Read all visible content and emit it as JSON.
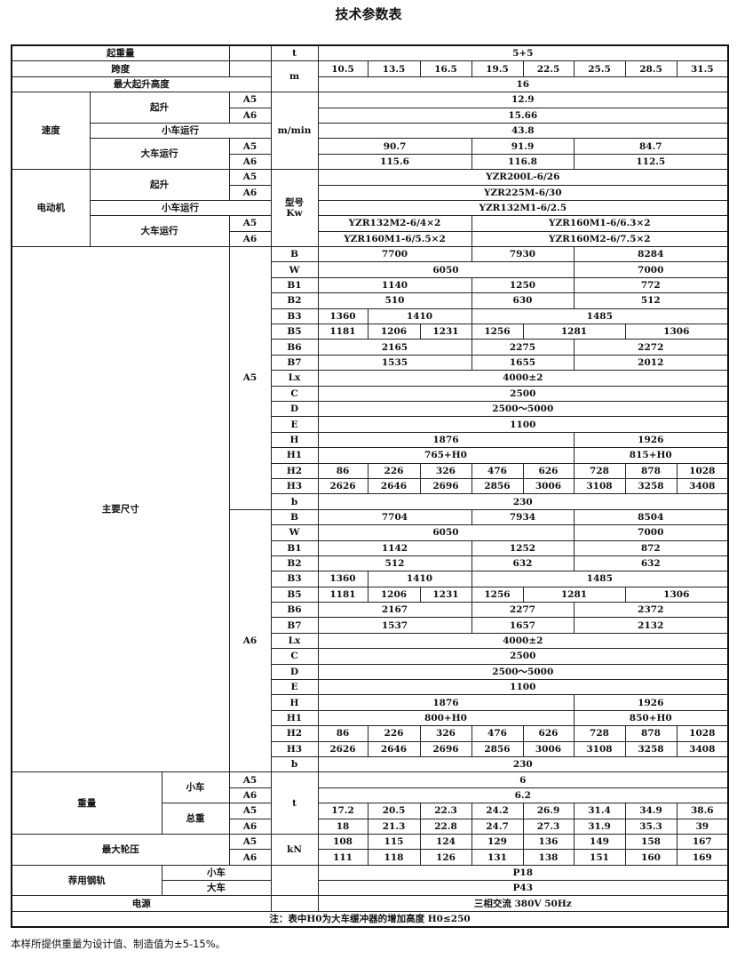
{
  "title": "技术参数表",
  "footnote": "本样所提供重量为设计值、制造值为±5-15%。",
  "table": {
    "rows": [
      [
        [
          "起重量",
          3
        ],
        "",
        [
          "t"
        ],
        [
          "5+5",
          8
        ]
      ],
      [
        [
          "跨度",
          3
        ],
        "",
        [
          "m",
          1,
          2
        ],
        "10.5",
        "13.5",
        "16.5",
        "19.5",
        "22.5",
        "25.5",
        "28.5",
        "31.5"
      ],
      [
        [
          "最大起升高度",
          4
        ],
        [
          "16",
          8
        ]
      ],
      [
        [
          "速度",
          1,
          5
        ],
        [
          "起升",
          2,
          2
        ],
        "A5",
        [
          "m/min",
          1,
          5
        ],
        [
          "12.9",
          8
        ]
      ],
      [
        "A6",
        [
          "15.66",
          8
        ]
      ],
      [
        [
          "小车运行",
          3
        ],
        [
          "43.8",
          8
        ]
      ],
      [
        [
          "大车运行",
          2,
          2
        ],
        "A5",
        [
          "90.7",
          3
        ],
        [
          "91.9",
          2
        ],
        [
          "84.7",
          3
        ]
      ],
      [
        "A6",
        [
          "115.6",
          3
        ],
        [
          "116.8",
          2
        ],
        [
          "112.5",
          3
        ]
      ],
      [
        [
          "电动机",
          1,
          5
        ],
        [
          "起升",
          2,
          2
        ],
        "A5",
        [
          "型号\nKw",
          1,
          5
        ],
        [
          "YZR200L-6/26",
          8
        ]
      ],
      [
        "A6",
        [
          "YZR225M-6/30",
          8
        ]
      ],
      [
        [
          "小车运行",
          3
        ],
        [
          "YZR132M1-6/2.5",
          8
        ]
      ],
      [
        [
          "大车运行",
          2,
          2
        ],
        "A5",
        [
          "YZR132M2-6/4×2",
          3
        ],
        [
          "YZR160M1-6/6.3×2",
          5
        ]
      ],
      [
        "A6",
        [
          "YZR160M1-6/5.5×2",
          3
        ],
        [
          "YZR160M2-6/7.5×2",
          5
        ]
      ],
      [
        [
          "主要尺寸",
          3,
          34
        ],
        [
          "A5",
          1,
          17
        ],
        "B",
        [
          "7700",
          3
        ],
        [
          "7930",
          2
        ],
        [
          "8284",
          3
        ]
      ],
      [
        "W",
        [
          "6050",
          5
        ],
        [
          "7000",
          3
        ]
      ],
      [
        "B1",
        [
          "1140",
          3
        ],
        [
          "1250",
          2
        ],
        [
          "772",
          3
        ]
      ],
      [
        "B2",
        [
          "510",
          3
        ],
        [
          "630",
          2
        ],
        [
          "512",
          3
        ]
      ],
      [
        "B3",
        "1360",
        [
          "1410",
          2
        ],
        [
          "1485",
          5
        ]
      ],
      [
        "B5",
        "1181",
        "1206",
        "1231",
        "1256",
        [
          "1281",
          2
        ],
        [
          "1306",
          2
        ]
      ],
      [
        "B6",
        [
          "2165",
          3
        ],
        [
          "2275",
          2
        ],
        [
          "2272",
          3
        ]
      ],
      [
        "B7",
        [
          "1535",
          3
        ],
        [
          "1655",
          2
        ],
        [
          "2012",
          3
        ]
      ],
      [
        "Lx",
        [
          "4000±2",
          8
        ]
      ],
      [
        "C",
        [
          "2500",
          8
        ]
      ],
      [
        "D",
        [
          "2500～5000",
          8
        ]
      ],
      [
        "E",
        [
          "1100",
          8
        ]
      ],
      [
        "H",
        [
          "1876",
          5
        ],
        [
          "1926",
          3
        ]
      ],
      [
        "H1",
        [
          "765+H0",
          5
        ],
        [
          "815+H0",
          3
        ]
      ],
      [
        "H2",
        "86",
        "226",
        "326",
        "476",
        "626",
        "728",
        "878",
        "1028"
      ],
      [
        "H3",
        "2626",
        "2646",
        "2696",
        "2856",
        "3006",
        "3108",
        "3258",
        "3408"
      ],
      [
        "b",
        [
          "230",
          8
        ]
      ],
      [
        [
          "A6",
          1,
          17
        ],
        "B",
        [
          "7704",
          3
        ],
        [
          "7934",
          2
        ],
        [
          "8504",
          3
        ]
      ],
      [
        "W",
        [
          "6050",
          5
        ],
        [
          "7000",
          3
        ]
      ],
      [
        "B1",
        [
          "1142",
          3
        ],
        [
          "1252",
          2
        ],
        [
          "872",
          3
        ]
      ],
      [
        "B2",
        [
          "512",
          3
        ],
        [
          "632",
          2
        ],
        [
          "632",
          3
        ]
      ],
      [
        "B3",
        "1360",
        [
          "1410",
          2
        ],
        [
          "1485",
          5
        ]
      ],
      [
        "B5",
        "1181",
        "1206",
        "1231",
        "1256",
        [
          "1281",
          2
        ],
        [
          "1306",
          2
        ]
      ],
      [
        "B6",
        [
          "2167",
          3
        ],
        [
          "2277",
          2
        ],
        [
          "2372",
          3
        ]
      ],
      [
        "B7",
        [
          "1537",
          3
        ],
        [
          "1657",
          2
        ],
        [
          "2132",
          3
        ]
      ],
      [
        "Lx",
        [
          "4000±2",
          8
        ]
      ],
      [
        "C",
        [
          "2500",
          8
        ]
      ],
      [
        "D",
        [
          "2500～5000",
          8
        ]
      ],
      [
        "E",
        [
          "1100",
          8
        ]
      ],
      [
        "H",
        [
          "1876",
          5
        ],
        [
          "1926",
          3
        ]
      ],
      [
        "H1",
        [
          "800+H0",
          5
        ],
        [
          "850+H0",
          3
        ]
      ],
      [
        "H2",
        "86",
        "226",
        "326",
        "476",
        "626",
        "728",
        "878",
        "1028"
      ],
      [
        "H3",
        "2626",
        "2646",
        "2696",
        "2856",
        "3006",
        "3108",
        "3258",
        "3408"
      ],
      [
        "b",
        [
          "230",
          8
        ]
      ],
      [
        [
          "重量",
          2,
          4
        ],
        [
          "小车",
          1,
          2
        ],
        "A5",
        [
          "t",
          1,
          4
        ],
        [
          "6",
          8
        ]
      ],
      [
        "A6",
        [
          "6.2",
          8
        ]
      ],
      [
        [
          "总重",
          1,
          2
        ],
        "A5",
        "17.2",
        "20.5",
        "22.3",
        "24.2",
        "26.9",
        "31.4",
        "34.9",
        "38.6"
      ],
      [
        "A6",
        "18",
        "21.3",
        "22.8",
        "24.7",
        "27.3",
        "31.9",
        "35.3",
        "39"
      ],
      [
        [
          "最大轮压",
          3,
          2
        ],
        "A5",
        [
          "kN",
          1,
          2
        ],
        "108",
        "115",
        "124",
        "129",
        "136",
        "149",
        "158",
        "167"
      ],
      [
        "A6",
        "111",
        "118",
        "126",
        "131",
        "138",
        "151",
        "160",
        "169"
      ],
      [
        [
          "荐用钢轨",
          2,
          2
        ],
        [
          "小车",
          2
        ],
        [
          "",
          1,
          2
        ],
        [
          "P18",
          8
        ]
      ],
      [
        [
          "大车",
          2
        ],
        [
          "P43",
          8
        ]
      ],
      [
        [
          "电源",
          4
        ],
        "",
        [
          "三相交流 380V 50Hz",
          8
        ]
      ],
      [
        [
          "注：表中H0为大车缓冲器的增加高度   H0≤250",
          13
        ]
      ]
    ]
  }
}
